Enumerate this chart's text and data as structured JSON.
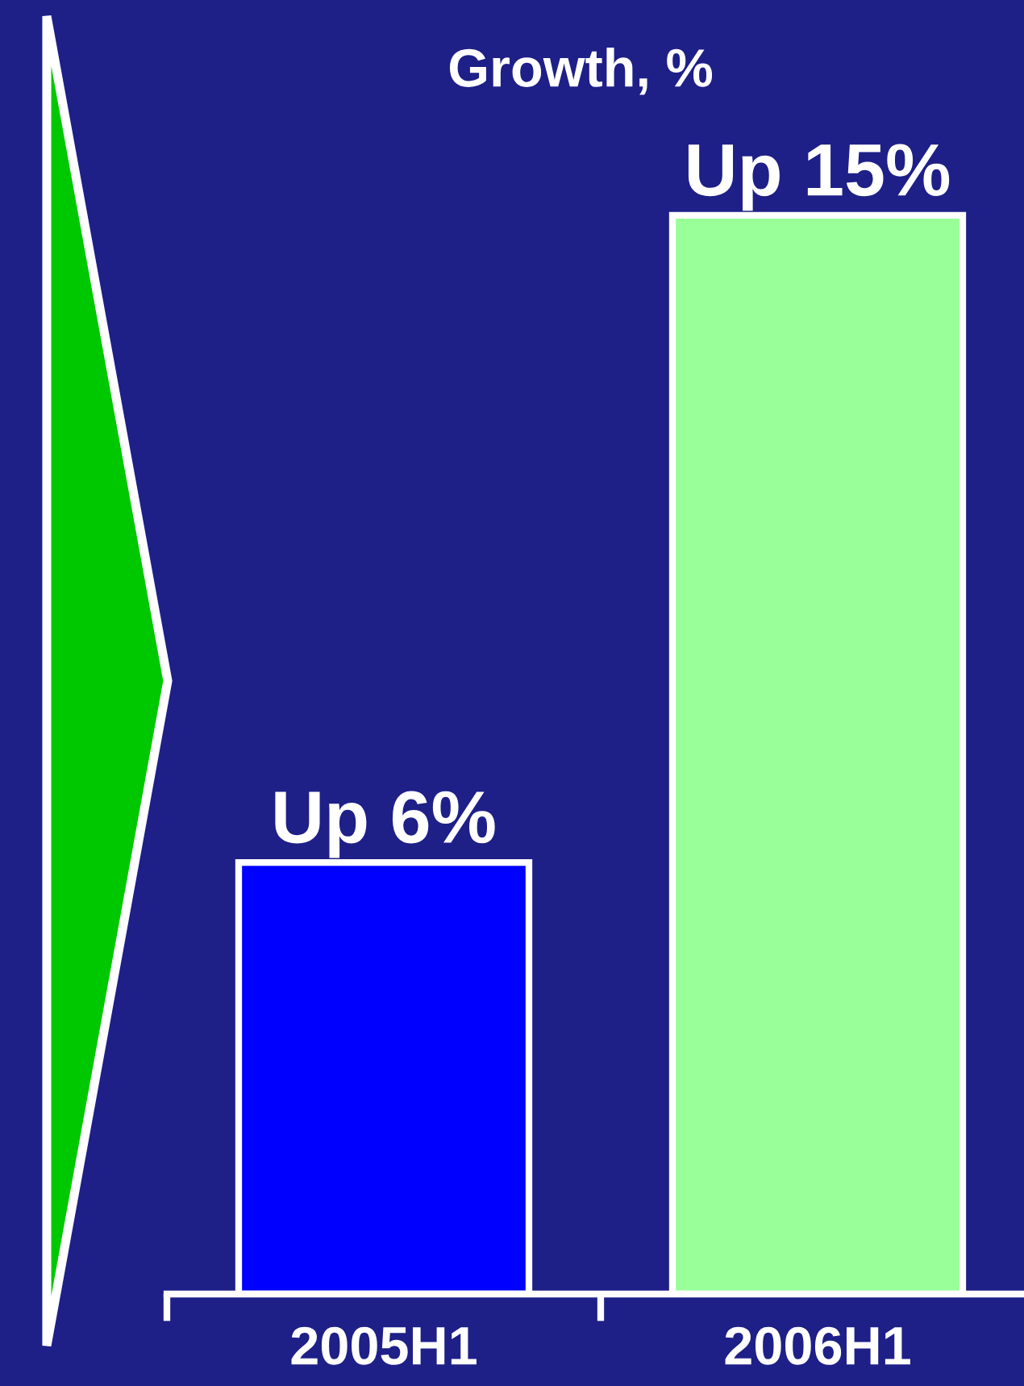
{
  "chart_data": {
    "type": "bar",
    "title": "Growth, %",
    "categories": [
      "2005H1",
      "2006H1"
    ],
    "values": [
      6,
      15
    ],
    "colors": [
      "#0000ff",
      "#99ff99"
    ],
    "value_labels": [
      "Up 6%",
      "Up 15%"
    ],
    "tick_labels": "x"
  }
}
